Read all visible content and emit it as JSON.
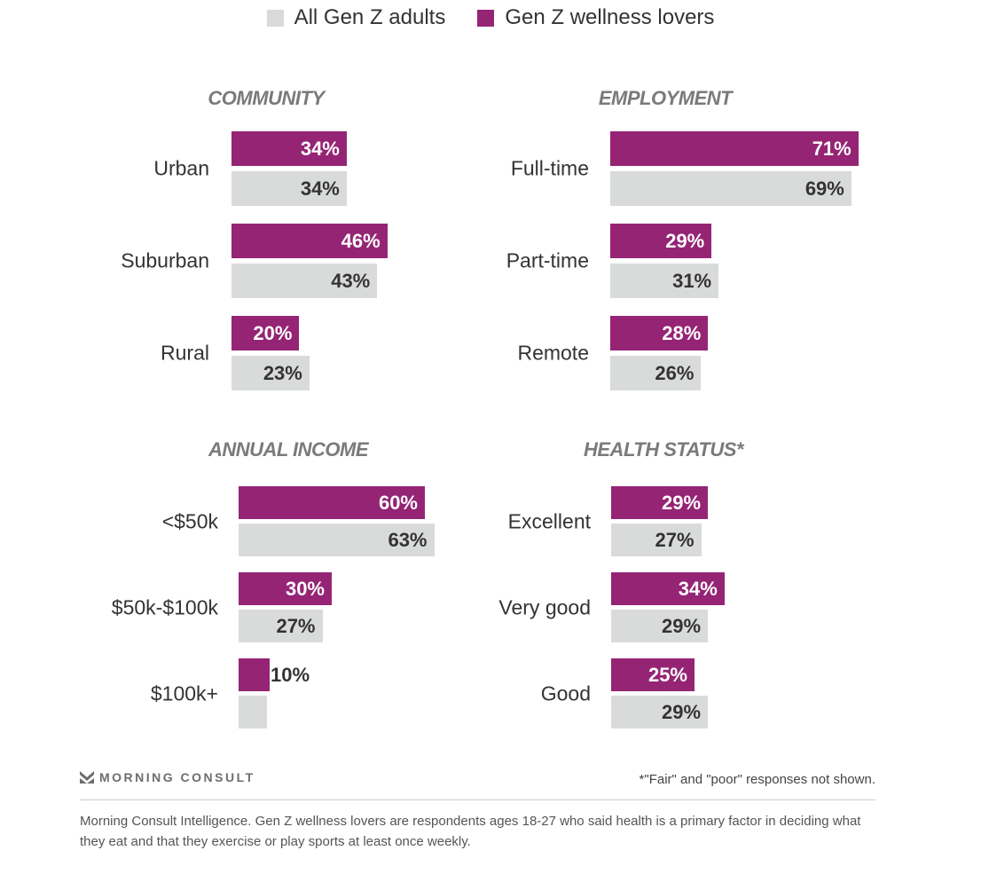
{
  "legend": {
    "all_label": "All Gen Z adults",
    "lovers_label": "Gen Z wellness lovers"
  },
  "colors": {
    "all": "#d9dada",
    "lovers": "#952475",
    "title": "#7a7a7a"
  },
  "chart_data": [
    {
      "type": "bar",
      "orientation": "horizontal",
      "title": "COMMUNITY",
      "categories": [
        "Urban",
        "Suburban",
        "Rural"
      ],
      "series": [
        {
          "name": "Gen Z wellness lovers",
          "values": [
            34,
            46,
            20
          ],
          "labels": [
            "34%",
            "46%",
            "20%"
          ]
        },
        {
          "name": "All Gen Z adults",
          "values": [
            34,
            43,
            23
          ],
          "labels": [
            "34%",
            "43%",
            "23%"
          ]
        }
      ]
    },
    {
      "type": "bar",
      "orientation": "horizontal",
      "title": "EMPLOYMENT",
      "categories": [
        "Full-time",
        "Part-time",
        "Remote"
      ],
      "series": [
        {
          "name": "Gen Z wellness lovers",
          "values": [
            71,
            29,
            28
          ],
          "labels": [
            "71%",
            "29%",
            "28%"
          ]
        },
        {
          "name": "All Gen Z adults",
          "values": [
            69,
            31,
            26
          ],
          "labels": [
            "69%",
            "31%",
            "26%"
          ]
        }
      ]
    },
    {
      "type": "bar",
      "orientation": "horizontal",
      "title": "ANNUAL INCOME",
      "categories": [
        "<$50k",
        "$50k-$100k",
        "$100k+"
      ],
      "series": [
        {
          "name": "Gen Z wellness lovers",
          "values": [
            60,
            30,
            10
          ],
          "labels": [
            "60%",
            "30%",
            "10%"
          ]
        },
        {
          "name": "All Gen Z adults",
          "values": [
            63,
            27,
            9
          ],
          "labels": [
            "63%",
            "27%",
            null
          ]
        }
      ]
    },
    {
      "type": "bar",
      "orientation": "horizontal",
      "title": "HEALTH STATUS*",
      "categories": [
        "Excellent",
        "Very good",
        "Good"
      ],
      "series": [
        {
          "name": "Gen Z wellness lovers",
          "values": [
            29,
            34,
            25
          ],
          "labels": [
            "29%",
            "34%",
            "25%"
          ]
        },
        {
          "name": "All Gen Z adults",
          "values": [
            27,
            29,
            29
          ],
          "labels": [
            "27%",
            "29%",
            "29%"
          ]
        }
      ]
    }
  ],
  "footer": {
    "logo_text": "MORNING CONSULT",
    "note": "*\"Fair\" and \"poor\" responses not shown.",
    "caption": "Morning Consult Intelligence. Gen Z wellness lovers are respondents ages 18-27 who said health is a primary factor in deciding what they eat and that they exercise or play sports at least once weekly."
  }
}
